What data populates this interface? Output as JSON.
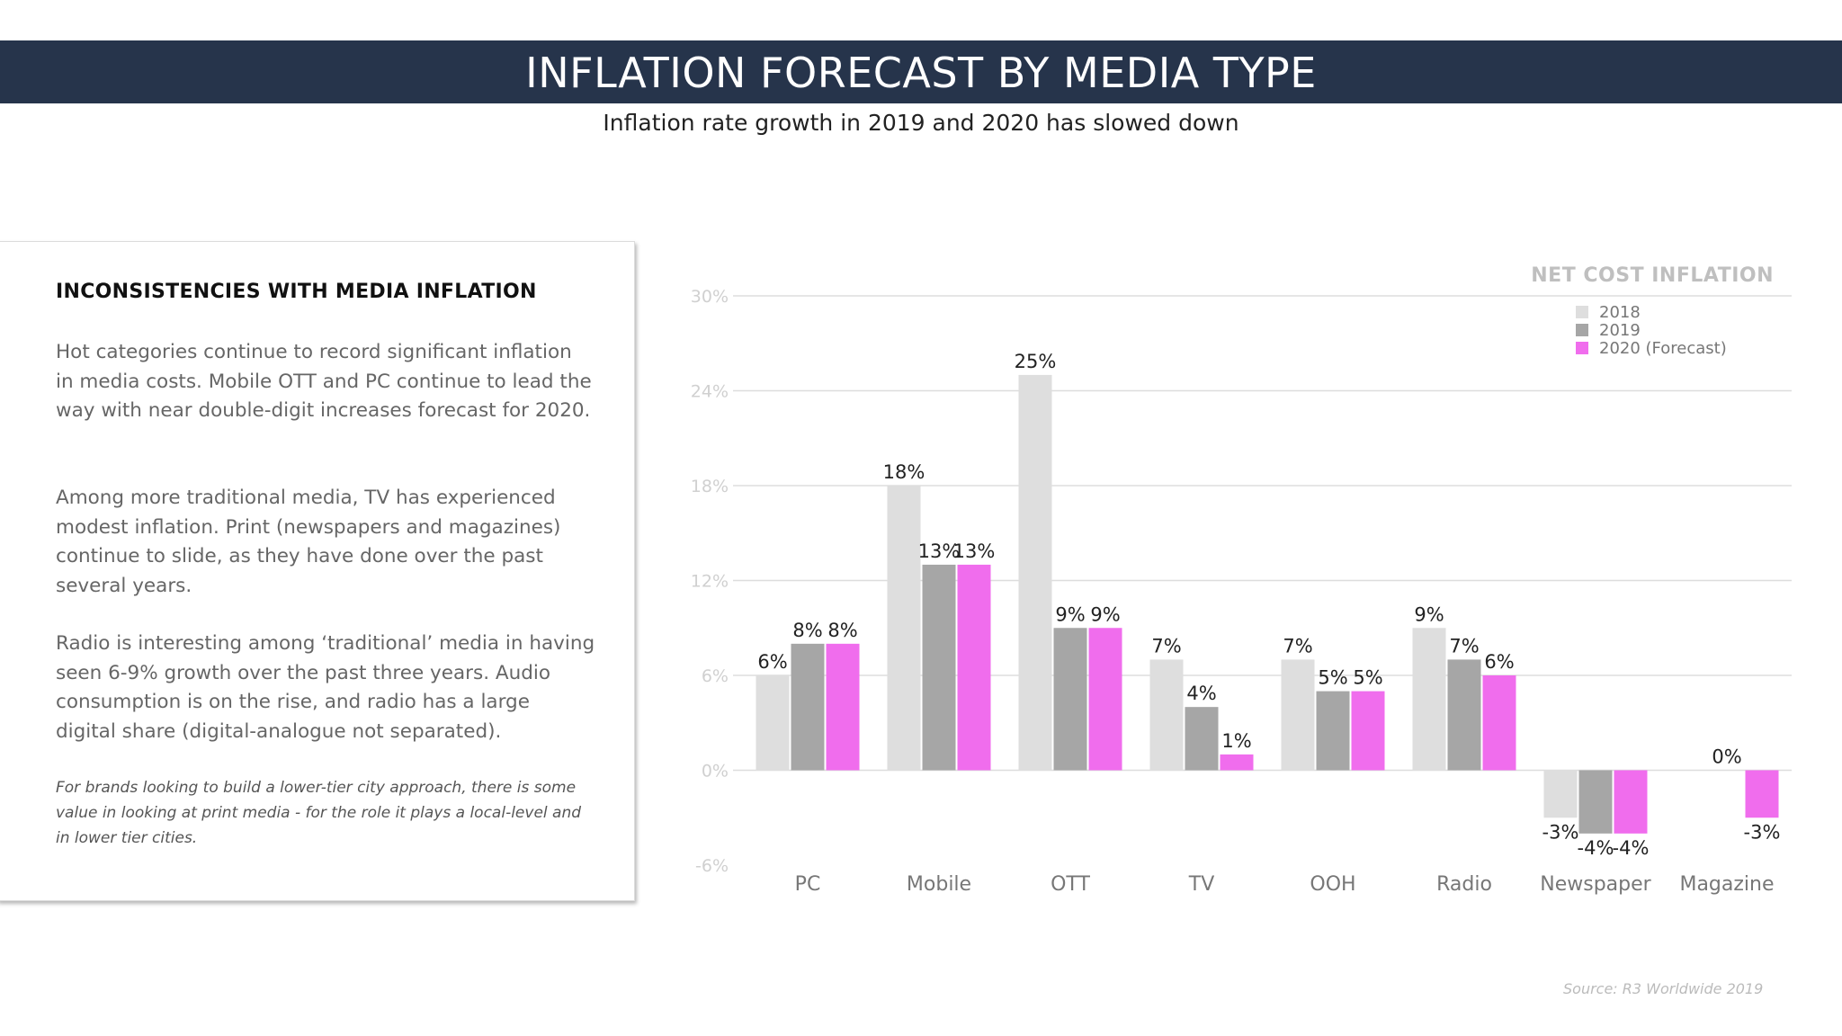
{
  "header": {
    "title": "INFLATION FORECAST BY MEDIA TYPE",
    "subtitle": "Inflation rate growth in 2019 and 2020 has slowed down"
  },
  "panel": {
    "heading": "INCONSISTENCIES WITH MEDIA INFLATION",
    "paragraphs": [
      "Hot categories continue to record significant inflation in media costs. Mobile OTT and PC continue to lead the way with near double-digit increases forecast for 2020.",
      "Among more traditional media, TV has experienced modest inflation. Print (newspapers and magazines) continue to slide, as they have done over the past several years.",
      "Radio is interesting among ‘traditional’ media in having seen 6-9% growth over the past three years. Audio consumption is on the rise, and radio has a large digital share (digital-analogue not separated)."
    ],
    "note": "For brands looking to build a lower-tier city approach, there is some value in looking at print media - for the role it plays a local-level and in lower tier cities."
  },
  "source": "Source: R3 Worldwide 2019",
  "chart_data": {
    "type": "bar",
    "title": "NET COST INFLATION",
    "categories": [
      "PC",
      "Mobile",
      "OTT",
      "TV",
      "OOH",
      "Radio",
      "Newspaper",
      "Magazine"
    ],
    "series": [
      {
        "name": "2018",
        "color": "#dedede",
        "values": [
          6,
          18,
          25,
          7,
          7,
          9,
          -3,
          null
        ]
      },
      {
        "name": "2019",
        "color": "#a6a6a6",
        "values": [
          8,
          13,
          9,
          4,
          5,
          7,
          -4,
          0
        ]
      },
      {
        "name": "2020 (Forecast)",
        "color": "#f06ded",
        "values": [
          8,
          13,
          9,
          1,
          5,
          6,
          -4,
          -3
        ]
      }
    ],
    "ylim": [
      -6,
      30
    ],
    "yticks": [
      -6,
      0,
      6,
      12,
      18,
      24,
      30
    ],
    "ytick_labels": [
      "-6%",
      "0%",
      "6%",
      "12%",
      "18%",
      "24%",
      "30%"
    ],
    "value_suffix": "%",
    "grid": true,
    "legend_position": "top-right",
    "xlabel": "",
    "ylabel": ""
  }
}
